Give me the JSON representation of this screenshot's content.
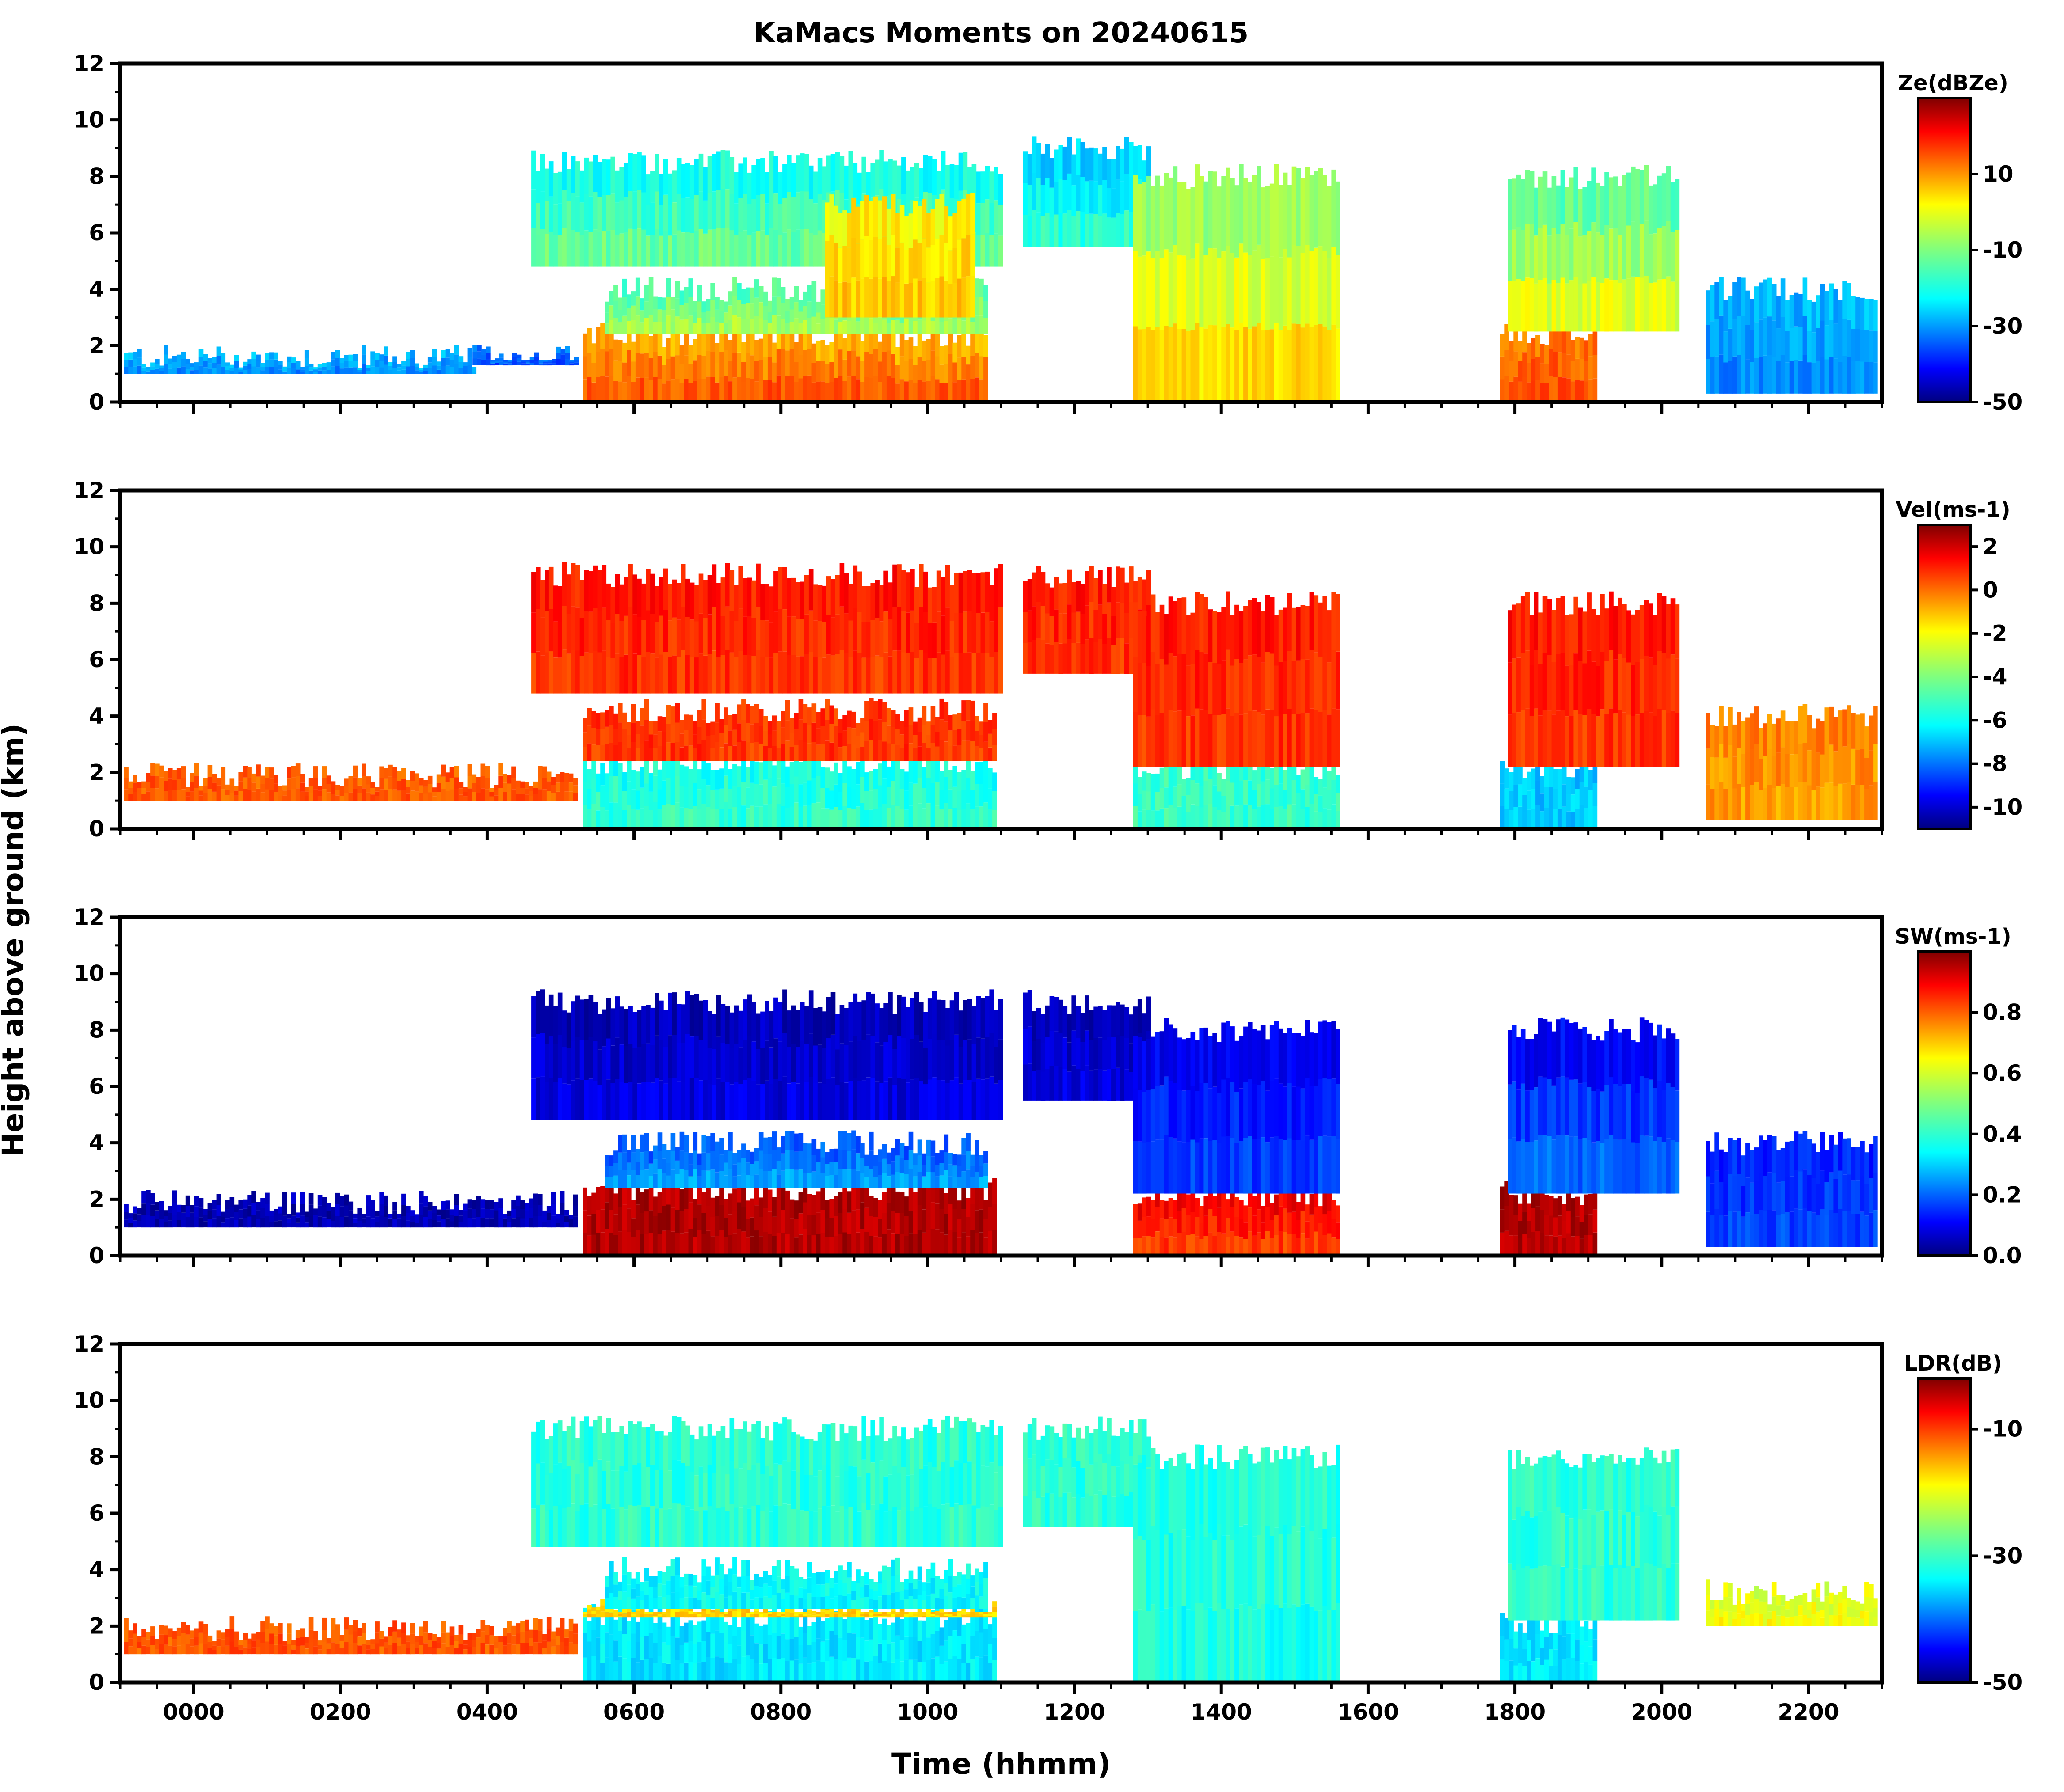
{
  "title": "KaMacs Moments on 20240615",
  "ylabel": "Height above ground (km)",
  "xlabel": "Time (hhmm)",
  "colors": {
    "jet": [
      "#00007f",
      "#0000ff",
      "#007fff",
      "#00ffff",
      "#7fff7f",
      "#ffff00",
      "#ff7f00",
      "#ff0000",
      "#7f0000"
    ],
    "axes": "#000000",
    "background": "#ffffff"
  },
  "chart_data": {
    "type": "heatmap",
    "x_domain": [
      -100,
      2300
    ],
    "x_ticks": [
      0,
      200,
      400,
      600,
      800,
      1000,
      1200,
      1400,
      1600,
      1800,
      2000,
      2200
    ],
    "x_tick_labels": [
      "0000",
      "0200",
      "0400",
      "0600",
      "0800",
      "1000",
      "1200",
      "1400",
      "1600",
      "1800",
      "2000",
      "2200"
    ],
    "y_domain": [
      0,
      12
    ],
    "y_ticks": [
      0,
      2,
      4,
      6,
      8,
      10,
      12
    ],
    "y_tick_labels": [
      "0",
      "2",
      "4",
      "6",
      "8",
      "10",
      "12"
    ],
    "panels": [
      {
        "name": "reflectivity",
        "colorbar_label": "Ze(dBZe)",
        "clim": [
          -50,
          30
        ],
        "cb_ticks": [
          -50,
          -30,
          -10,
          10
        ],
        "cb_tick_labels": [
          "-50",
          "-30",
          "-10",
          "10"
        ],
        "echoes": [
          {
            "t0": -95,
            "t1": 380,
            "h0": 1.0,
            "h1": 1.6,
            "v": -30,
            "vt": -25
          },
          {
            "t0": 380,
            "t1": 520,
            "h0": 1.3,
            "h1": 1.6,
            "v": -35,
            "vt": -30
          },
          {
            "t0": 530,
            "t1": 1080,
            "h0": 0,
            "h1": 2.4,
            "v": 15,
            "vt": 5
          },
          {
            "t0": 560,
            "t1": 1080,
            "h0": 2.4,
            "h1": 4.0,
            "v": -5,
            "vt": -15
          },
          {
            "t0": 460,
            "t1": 1100,
            "h0": 4.8,
            "h1": 8.5,
            "v": -10,
            "vt": -20
          },
          {
            "t0": 860,
            "t1": 1060,
            "h0": 3.0,
            "h1": 7.0,
            "v": 5,
            "vt": 0
          },
          {
            "t0": 1130,
            "t1": 1300,
            "h0": 5.5,
            "h1": 9.0,
            "v": -15,
            "vt": -25
          },
          {
            "t0": 1280,
            "t1": 1560,
            "h0": 0,
            "h1": 8.0,
            "v": 5,
            "vt": -10
          },
          {
            "t0": 1780,
            "t1": 1910,
            "h0": 0,
            "h1": 2.4,
            "v": 15,
            "vt": 10
          },
          {
            "t0": 1790,
            "t1": 2020,
            "h0": 2.5,
            "h1": 8.0,
            "v": 0,
            "vt": -15
          },
          {
            "t0": 2060,
            "t1": 2290,
            "h0": 0.3,
            "h1": 4.0,
            "v": -30,
            "vt": -25
          }
        ]
      },
      {
        "name": "velocity",
        "colorbar_label": "Vel(ms-1)",
        "clim": [
          -11,
          3
        ],
        "cb_ticks": [
          -10,
          -8,
          -6,
          -4,
          -2,
          0,
          2
        ],
        "cb_tick_labels": [
          "-10",
          "-8",
          "-6",
          "-4",
          "-2",
          "0",
          "2"
        ],
        "echoes": [
          {
            "t0": -95,
            "t1": 520,
            "h0": 1.0,
            "h1": 1.9,
            "v": 0.0,
            "vt": 0.0
          },
          {
            "t0": 530,
            "t1": 1090,
            "h0": 0,
            "h1": 2.4,
            "v": -5.0,
            "vt": -5.5
          },
          {
            "t0": 530,
            "t1": 1090,
            "h0": 2.4,
            "h1": 4.2,
            "v": 0.5,
            "vt": 0.5
          },
          {
            "t0": 460,
            "t1": 1100,
            "h0": 4.8,
            "h1": 9.0,
            "v": 0.5,
            "vt": 1.0
          },
          {
            "t0": 1130,
            "t1": 1300,
            "h0": 5.5,
            "h1": 9.0,
            "v": 0.5,
            "vt": 1.0
          },
          {
            "t0": 1280,
            "t1": 1560,
            "h0": 0,
            "h1": 2.2,
            "v": -5.0,
            "vt": -5.0
          },
          {
            "t0": 1280,
            "t1": 1560,
            "h0": 2.2,
            "h1": 8.0,
            "v": 0.5,
            "vt": 1.0
          },
          {
            "t0": 1780,
            "t1": 1910,
            "h0": 0,
            "h1": 2.2,
            "v": -6.5,
            "vt": -6.5
          },
          {
            "t0": 1790,
            "t1": 2020,
            "h0": 2.2,
            "h1": 8.0,
            "v": 0.5,
            "vt": 1.0
          },
          {
            "t0": 2060,
            "t1": 2290,
            "h0": 0.3,
            "h1": 4.0,
            "v": -1.0,
            "vt": -0.5
          }
        ]
      },
      {
        "name": "spectrum_width",
        "colorbar_label": "SW(ms-1)",
        "clim": [
          0,
          1
        ],
        "cb_ticks": [
          0.0,
          0.2,
          0.4,
          0.6,
          0.8
        ],
        "cb_tick_labels": [
          "0.0",
          "0.2",
          "0.4",
          "0.6",
          "0.8"
        ],
        "echoes": [
          {
            "t0": -95,
            "t1": 520,
            "h0": 1.0,
            "h1": 1.9,
            "v": 0.05,
            "vt": 0.05
          },
          {
            "t0": 530,
            "t1": 1090,
            "h0": 0,
            "h1": 2.4,
            "v": 0.95,
            "vt": 0.95
          },
          {
            "t0": 560,
            "t1": 1080,
            "h0": 2.4,
            "h1": 4.0,
            "v": 0.3,
            "vt": 0.2
          },
          {
            "t0": 460,
            "t1": 1100,
            "h0": 4.8,
            "h1": 9.0,
            "v": 0.1,
            "vt": 0.05
          },
          {
            "t0": 1130,
            "t1": 1300,
            "h0": 5.5,
            "h1": 9.0,
            "v": 0.1,
            "vt": 0.05
          },
          {
            "t0": 1280,
            "t1": 1560,
            "h0": 0,
            "h1": 2.2,
            "v": 0.8,
            "vt": 0.9
          },
          {
            "t0": 1280,
            "t1": 1560,
            "h0": 2.2,
            "h1": 8.0,
            "v": 0.2,
            "vt": 0.1
          },
          {
            "t0": 1780,
            "t1": 1910,
            "h0": 0,
            "h1": 2.2,
            "v": 0.95,
            "vt": 0.95
          },
          {
            "t0": 1790,
            "t1": 2020,
            "h0": 2.2,
            "h1": 8.0,
            "v": 0.25,
            "vt": 0.1
          },
          {
            "t0": 2060,
            "t1": 2290,
            "h0": 0.3,
            "h1": 4.0,
            "v": 0.2,
            "vt": 0.15
          }
        ]
      },
      {
        "name": "linear_depolarization_ratio",
        "colorbar_label": "LDR(dB)",
        "clim": [
          -50,
          -2
        ],
        "cb_ticks": [
          -50,
          -30,
          -10
        ],
        "cb_tick_labels": [
          "-50",
          "-30",
          "-10"
        ],
        "echoes": [
          {
            "t0": -95,
            "t1": 520,
            "h0": 1.0,
            "h1": 1.9,
            "v": -12,
            "vt": -12
          },
          {
            "t0": 530,
            "t1": 1090,
            "h0": 0,
            "h1": 2.4,
            "v": -33,
            "vt": -33
          },
          {
            "t0": 530,
            "t1": 1090,
            "h0": 2.3,
            "h1": 2.6,
            "v": -18,
            "vt": -18
          },
          {
            "t0": 560,
            "t1": 1080,
            "h0": 2.6,
            "h1": 4.0,
            "v": -32,
            "vt": -32
          },
          {
            "t0": 460,
            "t1": 1100,
            "h0": 4.8,
            "h1": 9.0,
            "v": -30,
            "vt": -30
          },
          {
            "t0": 1130,
            "t1": 1300,
            "h0": 5.5,
            "h1": 9.0,
            "v": -30,
            "vt": -30
          },
          {
            "t0": 1280,
            "t1": 1560,
            "h0": 0,
            "h1": 8.0,
            "v": -31,
            "vt": -30
          },
          {
            "t0": 1780,
            "t1": 1910,
            "h0": 0,
            "h1": 2.2,
            "v": -33,
            "vt": -33
          },
          {
            "t0": 1790,
            "t1": 2020,
            "h0": 2.2,
            "h1": 8.0,
            "v": -30,
            "vt": -30
          },
          {
            "t0": 2060,
            "t1": 2290,
            "h0": 2.0,
            "h1": 3.2,
            "v": -20,
            "vt": -22
          }
        ]
      }
    ]
  }
}
